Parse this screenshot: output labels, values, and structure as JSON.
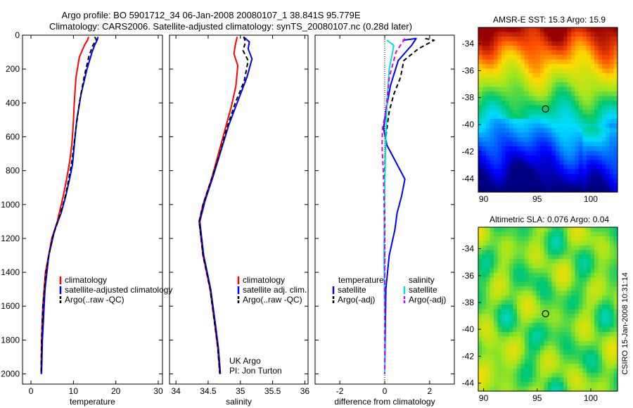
{
  "header": {
    "title_line1": "Argo profile: BO 5901712_34 06-Jan-2008 20080107_1 38.841S 95.779E",
    "title_line2": "Climatology: CARS2006. Satellite-adjusted climatology: synTS_20080107.nc (0.28d later)"
  },
  "side_label": "CSIRO 15-Jan-2008 10:31:14",
  "colors": {
    "climatology": "#ff0000",
    "satellite": "#0000ff",
    "argo": "#000000",
    "sat_salinity": "#00e0e0",
    "argo_salinity": "#e000e0"
  },
  "chart_data": [
    {
      "type": "line",
      "id": "temperature",
      "xlabel": "temperature",
      "ylabel": "",
      "xlim": [
        -2,
        31
      ],
      "ylim": [
        2060,
        0
      ],
      "y_reversed": true,
      "xticks": [
        0,
        10,
        20,
        30
      ],
      "yticks": [
        0,
        200,
        400,
        600,
        800,
        1000,
        1200,
        1400,
        1600,
        1800,
        2000
      ],
      "legend": {
        "placement": "lower-right",
        "entries": [
          "climatology",
          "satellite-adjusted climatology",
          "Argo(..raw -QC)"
        ]
      },
      "series": [
        {
          "name": "climatology",
          "color": "#ff0000",
          "dash": false,
          "x": [
            13.6,
            13.3,
            12.6,
            11.4,
            10.6,
            10.2,
            9.9,
            9.6,
            9.1,
            8.4,
            7.6,
            6.2,
            4.9,
            3.4,
            2.8,
            2.5,
            2.4
          ],
          "y": [
            10,
            30,
            60,
            130,
            250,
            400,
            550,
            650,
            750,
            850,
            950,
            1100,
            1200,
            1400,
            1600,
            1800,
            2000
          ]
        },
        {
          "name": "satellite-adjusted climatology",
          "color": "#0000ff",
          "dash": false,
          "x": [
            15.8,
            15.6,
            15.0,
            14.4,
            13.2,
            11.8,
            10.8,
            10.2,
            9.8,
            9.1,
            8.2,
            7.1,
            5.6,
            4.2,
            3.3,
            2.7,
            2.5
          ],
          "y": [
            10,
            30,
            60,
            100,
            200,
            350,
            500,
            650,
            760,
            850,
            950,
            1050,
            1150,
            1300,
            1500,
            1800,
            2000
          ]
        },
        {
          "name": "Argo(..raw -QC)",
          "color": "#000000",
          "dash": true,
          "x": [
            15.0,
            15.4,
            14.6,
            13.7,
            12.5,
            11.4,
            10.6,
            10.1,
            9.6,
            8.9,
            8.1,
            6.6,
            5.0,
            3.5,
            2.8,
            2.5,
            2.4
          ],
          "y": [
            10,
            25,
            60,
            120,
            250,
            400,
            550,
            650,
            750,
            850,
            950,
            1080,
            1200,
            1400,
            1600,
            1800,
            2000
          ]
        }
      ]
    },
    {
      "type": "line",
      "id": "salinity",
      "xlabel": "salinity",
      "ylabel": "",
      "xlim": [
        33.9,
        36.05
      ],
      "ylim": [
        2060,
        0
      ],
      "y_reversed": true,
      "xticks": [
        34,
        34.5,
        35,
        35.5,
        36
      ],
      "xtick_labels": [
        "34",
        "34.5",
        "35",
        "35.5",
        "36"
      ],
      "legend": {
        "placement": "lower-right",
        "entries": [
          "climatology",
          "satellite adj. clim.",
          "Argo(..raw -QC)"
        ]
      },
      "annotations": [
        "UK Argo",
        "PI: Jon Turton"
      ],
      "series": [
        {
          "name": "climatology",
          "color": "#ff0000",
          "dash": false,
          "x": [
            34.95,
            34.92,
            34.9,
            34.96,
            34.93,
            34.86,
            34.76,
            34.66,
            34.55,
            34.42,
            34.36,
            34.42,
            34.53,
            34.6,
            34.65,
            34.68
          ],
          "y": [
            10,
            60,
            110,
            180,
            300,
            420,
            560,
            700,
            850,
            1000,
            1100,
            1300,
            1500,
            1700,
            1850,
            2000
          ]
        },
        {
          "name": "satellite adj. clim.",
          "color": "#0000ff",
          "dash": false,
          "x": [
            35.05,
            35.14,
            35.12,
            35.18,
            35.1,
            34.97,
            34.82,
            34.7,
            34.58,
            34.45,
            34.37,
            34.43,
            34.54,
            34.61,
            34.66,
            34.69
          ],
          "y": [
            10,
            40,
            80,
            140,
            250,
            380,
            530,
            680,
            830,
            980,
            1100,
            1300,
            1500,
            1700,
            1850,
            2000
          ]
        },
        {
          "name": "Argo(..raw -QC)",
          "color": "#000000",
          "dash": true,
          "x": [
            35.05,
            35.08,
            35.04,
            35.12,
            35.06,
            34.92,
            34.78,
            34.68,
            34.55,
            34.42,
            34.36,
            34.42,
            34.53,
            34.6,
            34.65,
            34.68
          ],
          "y": [
            10,
            40,
            90,
            150,
            270,
            400,
            560,
            700,
            850,
            1000,
            1100,
            1300,
            1500,
            1700,
            1850,
            2000
          ]
        }
      ]
    },
    {
      "type": "line",
      "id": "difference",
      "xlabel": "difference from climatology",
      "ylabel": "",
      "xlim": [
        -3.1,
        3.1
      ],
      "ylim": [
        2060,
        0
      ],
      "y_reversed": true,
      "xticks": [
        -2,
        0,
        2
      ],
      "legend": {
        "placement": "lower-center",
        "groups": [
          {
            "heading": "temperature",
            "entries": [
              "satellite",
              "Argo(-adj)"
            ]
          },
          {
            "heading": "salinity",
            "entries": [
              "satellite",
              "Argo(-adj)"
            ]
          }
        ]
      },
      "series": [
        {
          "name": "temperature satellite",
          "color": "#0000ff",
          "dash": false,
          "x": [
            0.8,
            1.4,
            1.2,
            0.6,
            0.25,
            0.05,
            -0.05,
            0.1,
            0.5,
            0.9,
            0.75,
            0.55,
            0.45,
            0.2,
            0.05,
            0.02,
            0.0
          ],
          "y": [
            30,
            20,
            60,
            150,
            300,
            450,
            550,
            650,
            750,
            850,
            950,
            1050,
            1150,
            1300,
            1500,
            1800,
            2000
          ]
        },
        {
          "name": "temperature Argo(-adj)",
          "color": "#000000",
          "dash": true,
          "x": [
            1.8,
            2.2,
            1.5,
            0.85,
            0.7,
            0.4,
            0.2,
            0.05,
            0.0,
            0.0,
            0.0
          ],
          "y": [
            20,
            30,
            80,
            150,
            250,
            350,
            450,
            600,
            800,
            1200,
            2000
          ]
        },
        {
          "name": "salinity satellite",
          "color": "#00e0e0",
          "dash": false,
          "x": [
            0.1,
            0.4,
            0.35,
            0.2,
            0.1,
            0.05,
            0.0,
            -0.03,
            0.0,
            0.0
          ],
          "y": [
            30,
            60,
            100,
            200,
            400,
            600,
            900,
            1300,
            1700,
            2000
          ]
        },
        {
          "name": "salinity Argo(-adj)",
          "color": "#e000e0",
          "dash": true,
          "x": [
            0.9,
            0.8,
            0.5,
            0.2,
            0.05,
            -0.1,
            -0.12,
            -0.05,
            0.0,
            0.0
          ],
          "y": [
            20,
            40,
            100,
            250,
            450,
            550,
            650,
            850,
            1200,
            2000
          ]
        }
      ]
    },
    {
      "type": "heatmap",
      "id": "sst",
      "title": "AMSR-E SST: 15.3 Argo: 15.9",
      "xlim": [
        89.5,
        102.5
      ],
      "ylim": [
        -45,
        -32.8
      ],
      "xticks": [
        90,
        95,
        100
      ],
      "yticks": [
        -34,
        -36,
        -38,
        -40,
        -42,
        -44
      ],
      "marker": {
        "lon": 95.779,
        "lat": -38.841
      }
    },
    {
      "type": "heatmap",
      "id": "sla",
      "title": "Altimetric SLA: 0.076 Argo: 0.04",
      "xlim": [
        89.5,
        102.5
      ],
      "ylim": [
        -44.6,
        -32.4
      ],
      "xticks": [
        90,
        95,
        100
      ],
      "yticks": [
        -34,
        -36,
        -38,
        -40,
        -42,
        -44
      ],
      "marker": {
        "lon": 95.779,
        "lat": -38.841
      }
    }
  ]
}
